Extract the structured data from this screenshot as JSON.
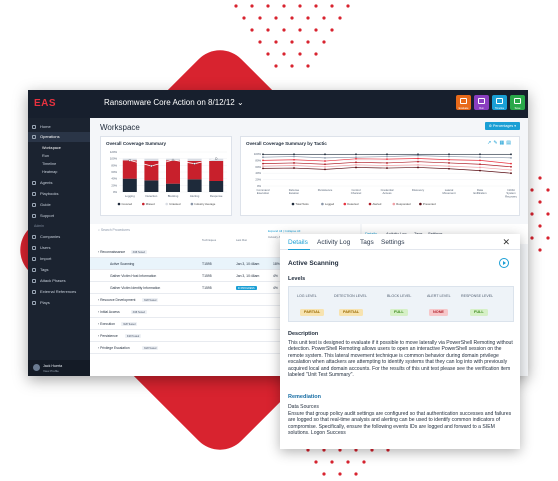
{
  "app": {
    "logo": "EAS",
    "title": "Ransomware Core Action on 8/12/12",
    "toolbar": [
      {
        "label": "Evaluate",
        "color": "#e86a1a"
      },
      {
        "label": "Run",
        "color": "#8a3fc0"
      },
      {
        "label": "Timeline",
        "color": "#1a9fd5"
      },
      {
        "label": "Save",
        "color": "#2aa84a"
      }
    ]
  },
  "sidebar": {
    "items": [
      {
        "label": "Home"
      },
      {
        "label": "Operations",
        "active": true
      },
      {
        "label": "Workspace",
        "sub": true
      },
      {
        "label": "Run",
        "sub": true
      },
      {
        "label": "Timeline",
        "sub": true
      },
      {
        "label": "Heatmap",
        "sub": true
      },
      {
        "label": "Agents"
      },
      {
        "label": "Playbooks"
      },
      {
        "label": "Guide"
      },
      {
        "label": "Support"
      },
      {
        "label": "Companies"
      },
      {
        "label": "Users"
      },
      {
        "label": "Import"
      },
      {
        "label": "Tags"
      },
      {
        "label": "Attack Phases"
      },
      {
        "label": "External References"
      },
      {
        "label": "Plays"
      }
    ],
    "section_label": "Admin",
    "user": {
      "name": "Jack Huerta",
      "sub": "View Profile"
    }
  },
  "workspace": {
    "title": "Workspace",
    "percentages_button": "Percentages"
  },
  "chart_left": {
    "title": "Overall Coverage Summary",
    "legend": [
      "Covered",
      "Missed",
      "Untested",
      "Industry Average"
    ]
  },
  "chart_right": {
    "title": "Overall Coverage Summary by Tactic",
    "legend": [
      "Total Tests",
      "Logged",
      "Detected",
      "Alerted",
      "Responded",
      "Prevented"
    ]
  },
  "chart_data": [
    {
      "type": "bar",
      "title": "Overall Coverage Summary",
      "categories": [
        "Logging",
        "Detection",
        "Blocking",
        "Alerting",
        "Response"
      ],
      "ylim": [
        0,
        120
      ],
      "series": [
        {
          "name": "Covered",
          "values": [
            40,
            35,
            25,
            38,
            33
          ]
        },
        {
          "name": "Missed",
          "values": [
            55,
            58,
            70,
            55,
            60
          ]
        },
        {
          "name": "Untested",
          "values": [
            5,
            7,
            5,
            7,
            7
          ]
        },
        {
          "name": "Industry Average",
          "values": [
            95,
            78,
            96,
            85,
            100
          ]
        }
      ]
    },
    {
      "type": "line",
      "title": "Overall Coverage Summary by Tactic",
      "categories": [
        "Command Execution",
        "Defense Evasion",
        "Persistence",
        "Control Channel",
        "Credential Access",
        "Discovery",
        "Lateral Movement",
        "Data Exfiltration",
        "Inhibit System Recovery"
      ],
      "ylim": [
        0,
        100
      ],
      "series": [
        {
          "name": "Total Tests",
          "color": "#1e2a3a",
          "values": [
            99,
            99,
            99,
            99,
            99,
            99,
            99,
            99,
            99
          ]
        },
        {
          "name": "Logged",
          "color": "#8a96a8",
          "values": [
            90,
            92,
            88,
            90,
            92,
            95,
            92,
            90,
            88
          ]
        },
        {
          "name": "Detected",
          "color": "#e8323f",
          "values": [
            80,
            82,
            78,
            85,
            84,
            86,
            82,
            80,
            70
          ]
        },
        {
          "name": "Alerted",
          "color": "#b01e28",
          "values": [
            70,
            72,
            68,
            74,
            72,
            76,
            72,
            68,
            60
          ]
        },
        {
          "name": "Responded",
          "color": "#f0a0a5",
          "values": [
            62,
            64,
            60,
            66,
            64,
            66,
            62,
            58,
            50
          ]
        },
        {
          "name": "Prevented",
          "color": "#5a0e14",
          "values": [
            55,
            56,
            52,
            58,
            56,
            58,
            54,
            48,
            40
          ]
        }
      ]
    }
  ],
  "table": {
    "search_placeholder": "Search Procedures",
    "columns": [
      "",
      "Techniques",
      "Last Run",
      "Industry Alerting Avg"
    ],
    "rows": [
      {
        "label": "Reconnaissance",
        "chip": "3/28 Tested",
        "indent": 0
      },
      {
        "label": "Active Scanning",
        "tech": "T1595",
        "date": "Jan 3, 10:46am",
        "pct": "18%",
        "indent": 1,
        "selected": true
      },
      {
        "label": "Gather Victim Host Information",
        "tech": "T1595",
        "date": "Jan 3, 10:46am",
        "pct": "4%",
        "indent": 1
      },
      {
        "label": "Gather Victim Identity Information",
        "tech": "T1595",
        "status": "IN PROGRESS",
        "pct": "4%",
        "indent": 1
      },
      {
        "label": "Resource Development",
        "chip": "3/28 Tested",
        "indent": 0
      },
      {
        "label": "Initial Access",
        "chip": "3/28 Tested",
        "indent": 0
      },
      {
        "label": "Execution",
        "chip": "3/28 Tested",
        "indent": 0
      },
      {
        "label": "Persistence",
        "chip": "3/28 Tested",
        "indent": 0
      },
      {
        "label": "Privilege Escalation",
        "chip": "3/28 Tested",
        "indent": 0
      }
    ],
    "expand_link": "Expand All | Collapse All"
  },
  "back_panel_tabs": [
    "Details",
    "Activity Log",
    "Tags",
    "Settings"
  ],
  "panel": {
    "tabs": [
      "Details",
      "Activity Log",
      "Tags",
      "Settings"
    ],
    "title": "Active Scanning",
    "levels_heading": "Levels",
    "level_headers": [
      "LOG LEVEL",
      "DETECTION LEVEL",
      "BLOCK LEVEL",
      "ALERT LEVEL",
      "RESPONSE LEVEL"
    ],
    "level_values": [
      {
        "label": "PARTIAL",
        "bg": "#f7e3b0",
        "fg": "#9a6a00"
      },
      {
        "label": "PARTIAL",
        "bg": "#f7e3b0",
        "fg": "#9a6a00"
      },
      {
        "label": "FULL",
        "bg": "#d6f0c7",
        "fg": "#3a8a1a"
      },
      {
        "label": "NONE",
        "bg": "#f6c7ca",
        "fg": "#b01e28"
      },
      {
        "label": "FULL",
        "bg": "#d6f0c7",
        "fg": "#3a8a1a"
      }
    ],
    "description_heading": "Description",
    "description": "This unit test is designed to evaluate if it possible to move laterally via PowerShell Remoting without detection. PowerShell Remoting allows users to open an interactive PowerShell session on the remote system. This lateral movement technique is common behavior during domain privilege escalation when attackers are attempting to identify systems that they can log into with previously acquired local and domain accounts. For the results of this unit test please see the verification item labeled \"Unit Test Summary\".",
    "remediation_heading": "Remediation",
    "remediation_sub": "Data Sources",
    "remediation": "Ensure that group policy audit settings are configured so that authentication successes and failures are logged so that real-time analysis and alerting can be used to identify common indicators of compromise. Specifically, ensure the following events IDs are logged and forward to a SIEM solutions. Logon Success"
  }
}
